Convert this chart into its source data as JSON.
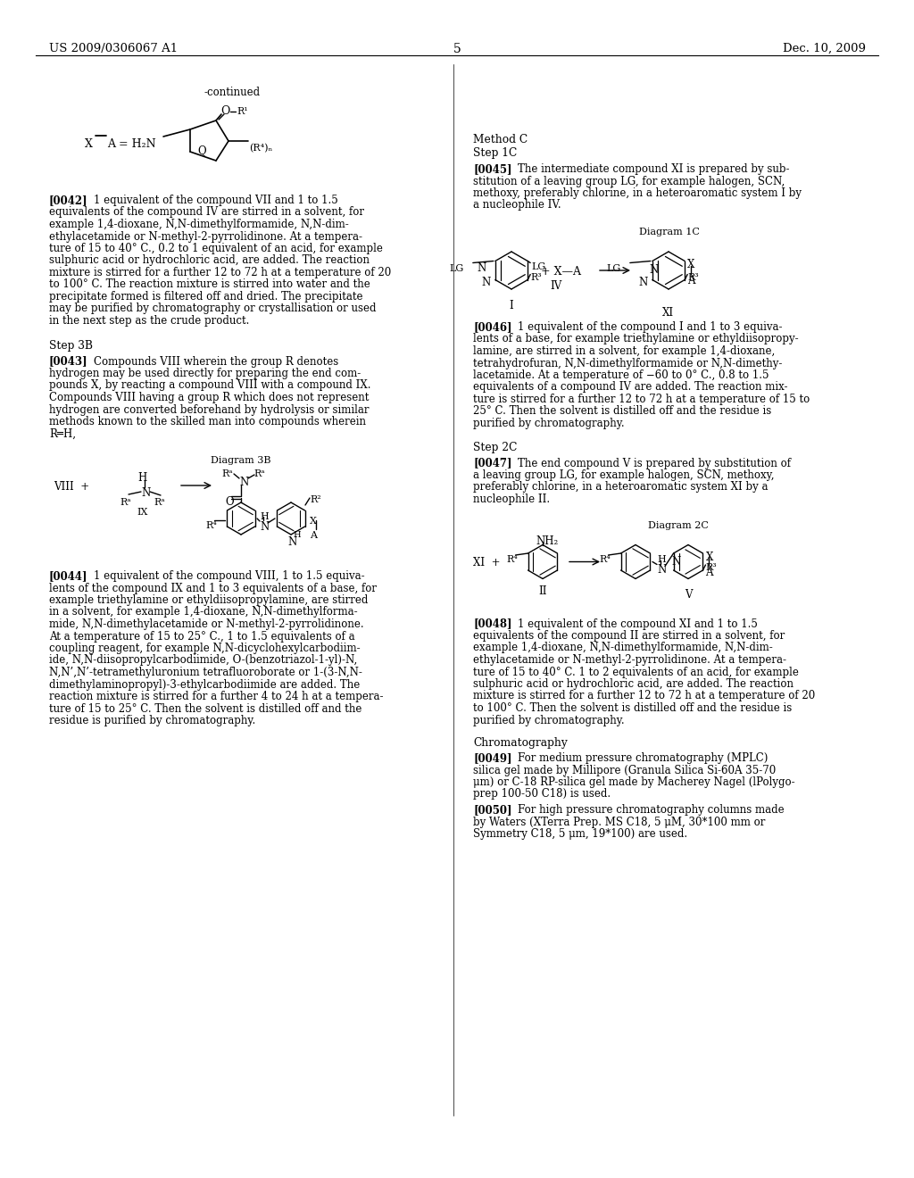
{
  "background_color": "#ffffff",
  "page_number": "5",
  "header_left": "US 2009/0306067 A1",
  "header_right": "Dec. 10, 2009"
}
